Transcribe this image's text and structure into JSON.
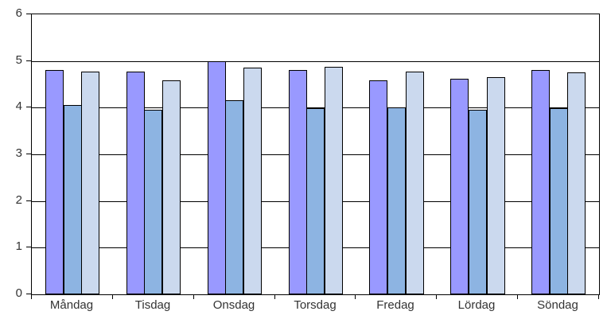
{
  "chart_data": {
    "type": "bar",
    "title": "",
    "xlabel": "",
    "ylabel": "",
    "categories": [
      "Måndag",
      "Tisdag",
      "Onsdag",
      "Torsdag",
      "Fredag",
      "Lördag",
      "Söndag"
    ],
    "series": [
      {
        "color": "#9999FF",
        "values": [
          4.8,
          4.78,
          4.99,
          4.8,
          4.59,
          4.62,
          4.8
        ]
      },
      {
        "color": "#8DB4E2",
        "values": [
          4.05,
          3.96,
          4.16,
          3.99,
          4.0,
          3.96,
          3.99
        ]
      },
      {
        "color": "#CBD9EE",
        "values": [
          4.78,
          4.59,
          4.85,
          4.87,
          4.78,
          4.66,
          4.76
        ]
      }
    ],
    "ylim": [
      0,
      6
    ],
    "yticks": [
      0,
      1,
      2,
      3,
      4,
      5,
      6
    ],
    "ytick_labels": [
      "0",
      "1",
      "2",
      "3",
      "4",
      "5",
      "6"
    ],
    "grid": true,
    "legend": false,
    "layout_hints": {
      "background": "#FFFFFF",
      "axis_color": "#000000",
      "gridline_color": "#000000",
      "bar_border_color": "#000000",
      "label_color": "#333333",
      "gap_width_percent": 150
    }
  }
}
